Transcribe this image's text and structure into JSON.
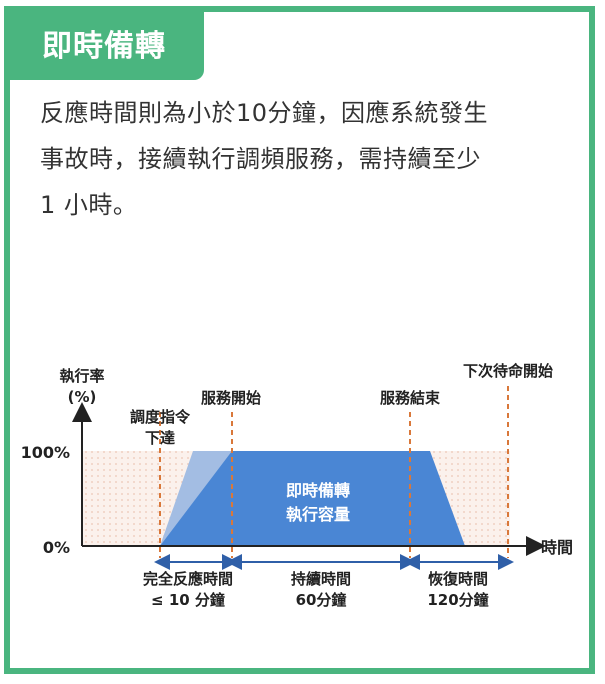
{
  "header": {
    "title": "即時備轉"
  },
  "description": {
    "lines": [
      "反應時間則為小於10分鐘，因應系統發生",
      "事故時，接續執行調頻服務，需持續至少",
      "1 小時。"
    ]
  },
  "diagram": {
    "y_axis_label": [
      "執行率",
      "(%)"
    ],
    "y_tick_top": "100%",
    "y_tick_zero": "0%",
    "x_axis_label": "時間",
    "dispatch_label": [
      "調度指令",
      "下達"
    ],
    "service_start_label": "服務開始",
    "service_end_label": "服務結束",
    "next_standby_label": "下次待命開始",
    "capacity_label": [
      "即時備轉",
      "執行容量"
    ],
    "intervals": [
      {
        "label": "完全反應時間",
        "value": "≤ 10 分鐘"
      },
      {
        "label": "持續時間",
        "value": "60分鐘"
      },
      {
        "label": "恢復時間",
        "value": "120分鐘"
      }
    ],
    "colors": {
      "accent": "#4ab57f",
      "area": "#4a86d4",
      "ramp_light": "#a3bde3",
      "dashed": "#d9783a",
      "band": "#f9ece6",
      "arrow": "#2f5fa8"
    }
  }
}
